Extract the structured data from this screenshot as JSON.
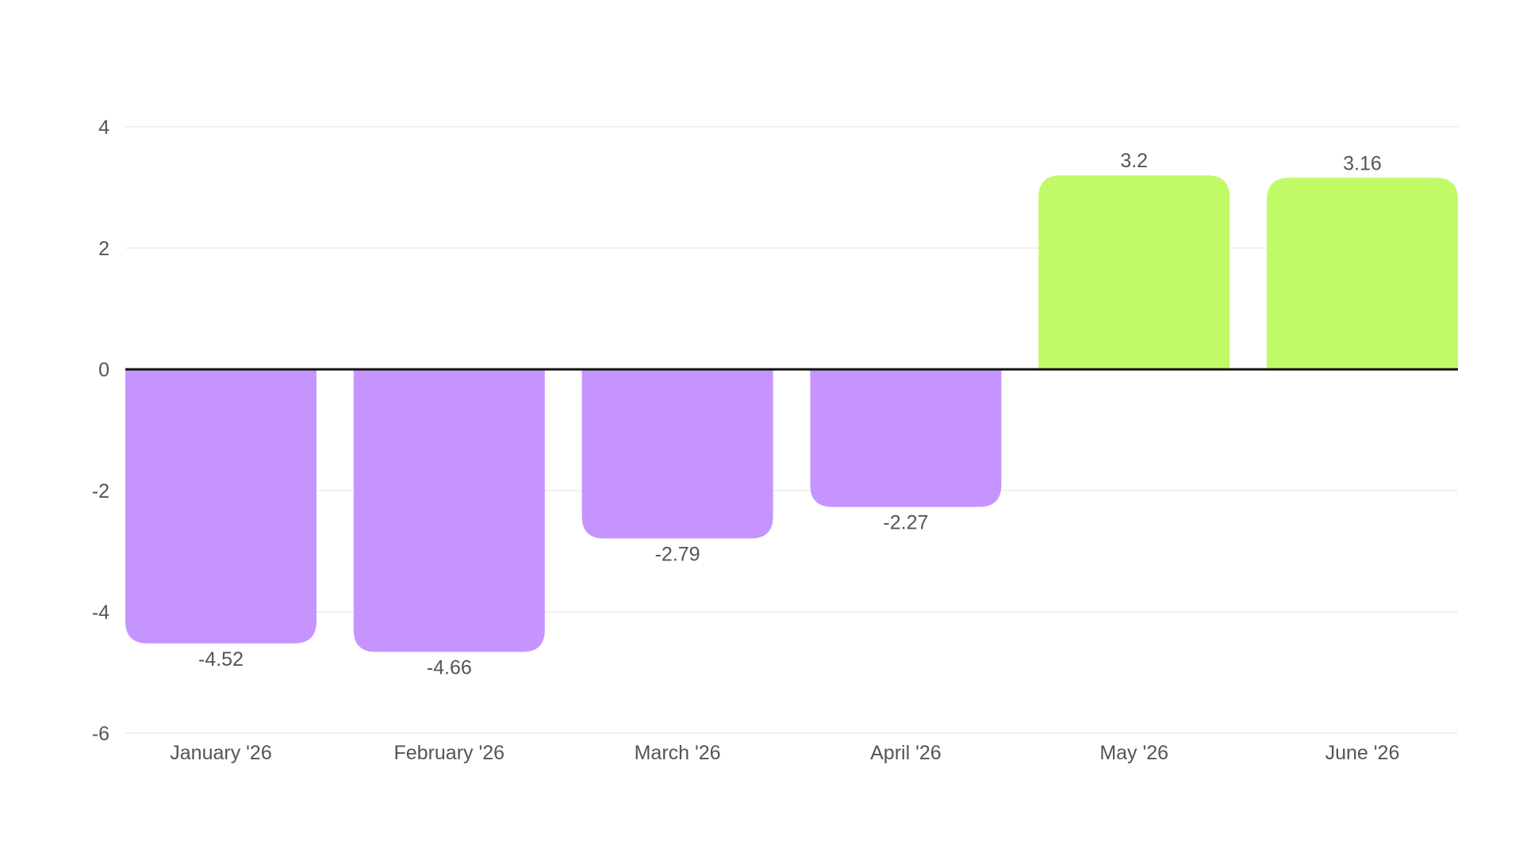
{
  "chart_data": {
    "type": "bar",
    "title": "",
    "xlabel": "",
    "ylabel": "",
    "categories": [
      "January '26",
      "February '26",
      "March '26",
      "April '26",
      "May '26",
      "June '26"
    ],
    "values": [
      -4.52,
      -4.66,
      -2.79,
      -2.27,
      3.2,
      3.16
    ],
    "value_labels": [
      "-4.52",
      "-4.66",
      "-2.79",
      "-2.27",
      "3.2",
      "3.16"
    ],
    "ylim": [
      -6,
      4
    ],
    "y_ticks": [
      4,
      2,
      0,
      -2,
      -4,
      -6
    ],
    "y_tick_labels": [
      "4",
      "2",
      "0",
      "-2",
      "-4",
      "-6"
    ],
    "grid": true,
    "legend": "none",
    "colors": {
      "negative": "#c694ff",
      "positive": "#c0fb67",
      "zero_line": "#111111",
      "grid": "#e6e6e6",
      "text": "#555555"
    }
  }
}
